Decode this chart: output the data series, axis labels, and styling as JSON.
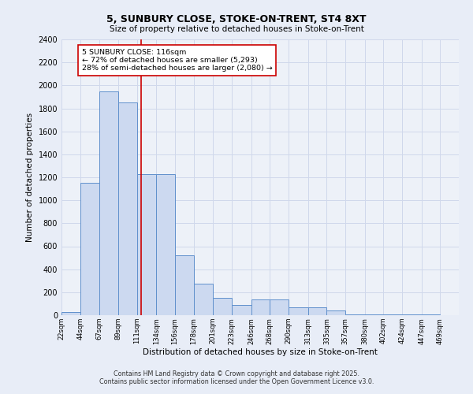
{
  "title1": "5, SUNBURY CLOSE, STOKE-ON-TRENT, ST4 8XT",
  "title2": "Size of property relative to detached houses in Stoke-on-Trent",
  "xlabel": "Distribution of detached houses by size in Stoke-on-Trent",
  "ylabel": "Number of detached properties",
  "bar_left_edges": [
    22,
    44,
    67,
    89,
    111,
    134,
    156,
    178,
    201,
    223,
    246,
    268,
    290,
    313,
    335,
    357,
    380,
    402,
    424,
    447
  ],
  "bar_widths": [
    22,
    23,
    22,
    22,
    23,
    22,
    22,
    23,
    22,
    23,
    22,
    22,
    23,
    22,
    22,
    23,
    22,
    22,
    23,
    22
  ],
  "bar_heights": [
    25,
    1150,
    1950,
    1850,
    1230,
    1230,
    520,
    275,
    150,
    90,
    135,
    135,
    70,
    70,
    40,
    5,
    5,
    5,
    5,
    5
  ],
  "bar_color": "#ccd9f0",
  "bar_edge_color": "#6090cc",
  "bar_edge_width": 0.8,
  "red_line_x": 116,
  "red_line_color": "#cc0000",
  "annotation_text": "5 SUNBURY CLOSE: 116sqm\n← 72% of detached houses are smaller (5,293)\n28% of semi-detached houses are larger (2,080) →",
  "annotation_box_color": "#cc0000",
  "annotation_box_fill": "#ffffff",
  "ylim": [
    0,
    2400
  ],
  "yticks": [
    0,
    200,
    400,
    600,
    800,
    1000,
    1200,
    1400,
    1600,
    1800,
    2000,
    2200,
    2400
  ],
  "xtick_labels": [
    "22sqm",
    "44sqm",
    "67sqm",
    "89sqm",
    "111sqm",
    "134sqm",
    "156sqm",
    "178sqm",
    "201sqm",
    "223sqm",
    "246sqm",
    "268sqm",
    "290sqm",
    "313sqm",
    "335sqm",
    "357sqm",
    "380sqm",
    "402sqm",
    "424sqm",
    "447sqm",
    "469sqm"
  ],
  "xtick_positions": [
    22,
    44,
    67,
    89,
    111,
    134,
    156,
    178,
    201,
    223,
    246,
    268,
    290,
    313,
    335,
    357,
    380,
    402,
    424,
    447,
    469
  ],
  "bg_color": "#e8edf7",
  "plot_bg_color": "#edf1f8",
  "grid_color": "#d0d8eb",
  "footer1": "Contains HM Land Registry data © Crown copyright and database right 2025.",
  "footer2": "Contains public sector information licensed under the Open Government Licence v3.0."
}
